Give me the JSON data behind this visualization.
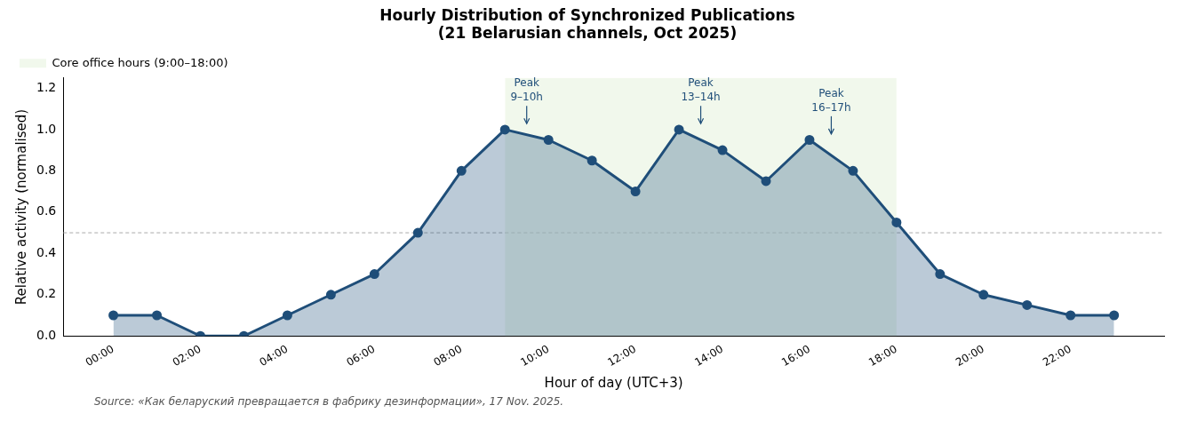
{
  "chart_data": {
    "type": "area",
    "title": "Hourly Distribution of Synchronized Publications\n(21 Belarusian channels, Oct 2025)",
    "xlabel": "Hour of day (UTC+3)",
    "ylabel": "Relative activity (normalised)",
    "x": [
      0,
      1,
      2,
      3,
      4,
      5,
      6,
      7,
      8,
      9,
      10,
      11,
      12,
      13,
      14,
      15,
      16,
      17,
      18,
      19,
      20,
      21,
      22,
      23
    ],
    "series": [
      {
        "color": "#1f4e79",
        "values": [
          0.1,
          0.1,
          0,
          0,
          0.1,
          0.2,
          0.3,
          0.5,
          0.8,
          1.0,
          0.95,
          0.85,
          0.7,
          1.0,
          0.9,
          0.75,
          0.95,
          0.8,
          0.55,
          0.3,
          0.2,
          0.15,
          0.1,
          0.1
        ]
      }
    ],
    "xlim": [
      -1.15,
      24.15
    ],
    "xticks": [
      {
        "value": 0,
        "label": "00:00"
      },
      {
        "value": 2,
        "label": "02:00"
      },
      {
        "value": 4,
        "label": "04:00"
      },
      {
        "value": 6,
        "label": "06:00"
      },
      {
        "value": 8,
        "label": "08:00"
      },
      {
        "value": 10,
        "label": "10:00"
      },
      {
        "value": 12,
        "label": "12:00"
      },
      {
        "value": 14,
        "label": "14:00"
      },
      {
        "value": 16,
        "label": "16:00"
      },
      {
        "value": 18,
        "label": "18:00"
      },
      {
        "value": 20,
        "label": "20:00"
      },
      {
        "value": 22,
        "label": "22:00"
      }
    ],
    "ylim": [
      0,
      1.25
    ],
    "yticks": [
      {
        "value": 0,
        "label": "0.0"
      },
      0.2,
      0.4,
      0.6,
      0.8,
      {
        "value": 1,
        "label": "1.0"
      },
      1.2
    ],
    "marker": "circle",
    "grid": false,
    "legend": "top left",
    "bands": [
      {
        "axis": "x",
        "from": 9,
        "to": 18,
        "label": "Core office hours (9:00–18:00)",
        "color": "#e8f3e0"
      }
    ],
    "ref_lines": [
      {
        "axis": "y",
        "value": 0.5,
        "color": "#aaaaaa",
        "line_style": "dashed"
      }
    ],
    "annotations": [
      "Peak\n9–10h",
      "Peak\n13–14h",
      "Peak\n16–17h",
      "Source: «Как беларуский превращается в фабрику дезинформации», 17 Nov. 2025."
    ]
  }
}
